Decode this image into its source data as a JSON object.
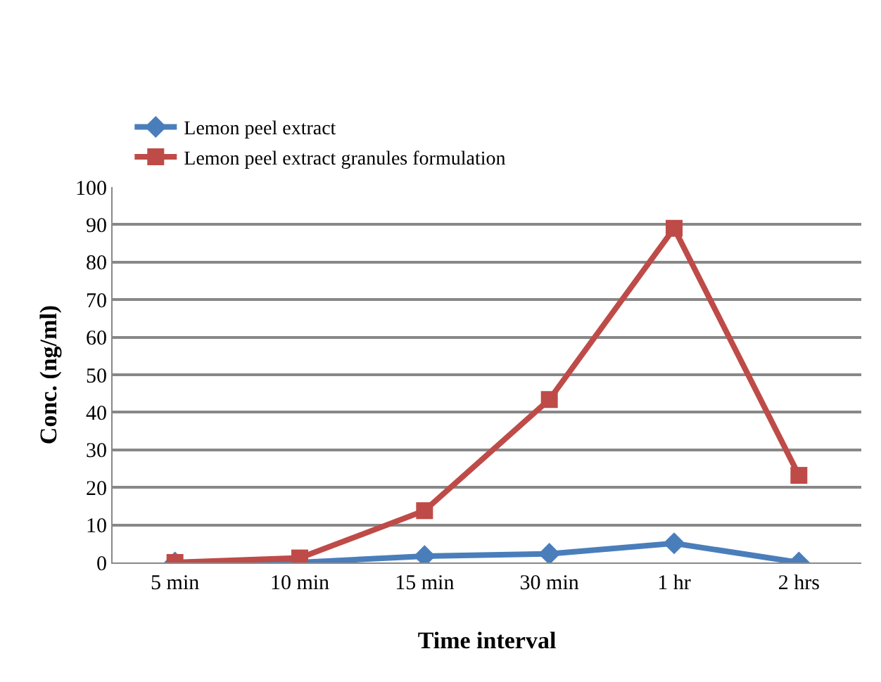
{
  "chart_data": {
    "type": "line",
    "xlabel": "Time interval",
    "ylabel": "Conc. (ng/ml)",
    "categories": [
      "5 min",
      "10 min",
      "15 min",
      "30 min",
      "1 hr",
      "2 hrs"
    ],
    "series": [
      {
        "name": "Lemon peel extract",
        "color": "#4a7ebb",
        "marker": "diamond",
        "values": [
          0,
          0,
          1.7,
          2.3,
          5.1,
          0
        ]
      },
      {
        "name": "Lemon peel extract granules formulation",
        "color": "#be4b48",
        "marker": "square",
        "values": [
          0,
          1.2,
          13.8,
          43.4,
          89,
          23.2
        ]
      }
    ],
    "ylim": [
      0,
      100
    ],
    "yticks": [
      0,
      10,
      20,
      30,
      40,
      50,
      60,
      70,
      80,
      90,
      100
    ],
    "grid": "y",
    "legend": "top left"
  }
}
